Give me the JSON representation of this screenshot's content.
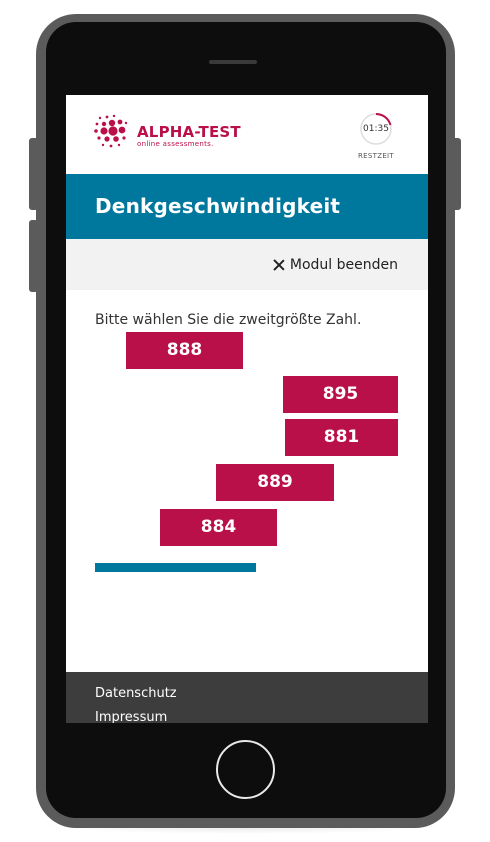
{
  "brand": {
    "name": "ALPHA-TEST",
    "tagline": "online assessments.",
    "color": "#ba104a"
  },
  "timer": {
    "value": "01:35",
    "label": "RESTZEIT",
    "accent_color": "#ba104a"
  },
  "module": {
    "title": "Denkgeschwindigkeit",
    "end_label": "Modul beenden",
    "title_bg_color": "#00779c"
  },
  "task": {
    "instruction": "Bitte wählen Sie die zweitgrößte Zahl.",
    "options": [
      "888",
      "895",
      "881",
      "889",
      "884"
    ],
    "option_color": "#ba104a"
  },
  "progress": {
    "fraction": 0.53,
    "color": "#00779c"
  },
  "footer": {
    "links": [
      "Datenschutz",
      "Impressum"
    ]
  }
}
